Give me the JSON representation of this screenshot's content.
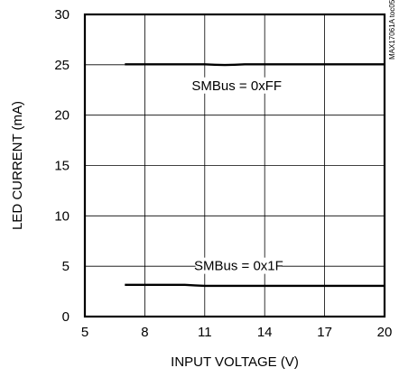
{
  "figure_id": "MAX17061A toc05",
  "chart_data": {
    "type": "line",
    "title": "",
    "xlabel": "INPUT VOLTAGE (V)",
    "ylabel": "LED CURRENT (mA)",
    "xlim": [
      5,
      20
    ],
    "ylim": [
      0,
      30
    ],
    "xticks": [
      5,
      8,
      11,
      14,
      17,
      20
    ],
    "yticks": [
      0,
      5,
      10,
      15,
      20,
      25,
      30
    ],
    "grid": true,
    "series": [
      {
        "name": "SMBus = 0xFF",
        "x": [
          7,
          8,
          9,
          10,
          11,
          11.5,
          12,
          12.5,
          13,
          14,
          15,
          16,
          17,
          18,
          19,
          20
        ],
        "y": [
          25.05,
          25.05,
          25.05,
          25.05,
          25.05,
          25.0,
          24.98,
          25.0,
          25.05,
          25.05,
          25.05,
          25.05,
          25.05,
          25.05,
          25.05,
          25.05
        ]
      },
      {
        "name": "SMBus = 0x1F",
        "x": [
          7,
          8,
          9,
          10,
          10.5,
          11,
          12,
          13,
          14,
          15,
          16,
          17,
          18,
          19,
          20
        ],
        "y": [
          3.15,
          3.15,
          3.15,
          3.15,
          3.1,
          3.05,
          3.05,
          3.05,
          3.05,
          3.05,
          3.05,
          3.05,
          3.05,
          3.05,
          3.05
        ]
      }
    ],
    "annotations": [
      {
        "text": "SMBus = 0xFF",
        "x": 12.6,
        "y": 22.5
      },
      {
        "text": "SMBus = 0x1F",
        "x": 12.7,
        "y": 4.6
      }
    ]
  }
}
